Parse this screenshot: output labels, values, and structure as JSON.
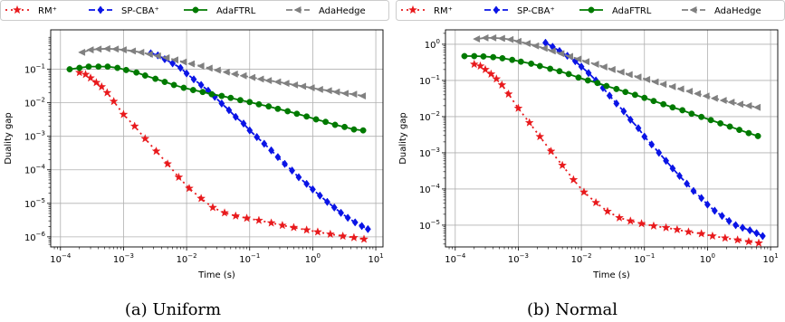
{
  "chart_data": [
    {
      "type": "line",
      "caption": "(a) Uniform",
      "xlabel": "Time (s)",
      "ylabel": "Duality gap",
      "x_scale": "log",
      "y_scale": "log",
      "xlim": [
        7e-05,
        13
      ],
      "ylim": [
        5e-07,
        1.5
      ],
      "x_ticks": [
        {
          "value": 0.0001,
          "base": "10",
          "exp": "−4"
        },
        {
          "value": 0.001,
          "base": "10",
          "exp": "−3"
        },
        {
          "value": 0.01,
          "base": "10",
          "exp": "−2"
        },
        {
          "value": 0.1,
          "base": "10",
          "exp": "−1"
        },
        {
          "value": 1,
          "base": "10",
          "exp": "0"
        },
        {
          "value": 10,
          "base": "10",
          "exp": "1"
        }
      ],
      "y_ticks": [
        {
          "value": 1e-06,
          "base": "10",
          "exp": "−6"
        },
        {
          "value": 1e-05,
          "base": "10",
          "exp": "−5"
        },
        {
          "value": 0.0001,
          "base": "10",
          "exp": "−4"
        },
        {
          "value": 0.001,
          "base": "10",
          "exp": "−3"
        },
        {
          "value": 0.01,
          "base": "10",
          "exp": "−2"
        },
        {
          "value": 0.1,
          "base": "10",
          "exp": "−1"
        }
      ],
      "grid": true,
      "legend_position": "top",
      "series": [
        {
          "name": "RM⁺",
          "color": "#e8191c",
          "marker": "star",
          "dash": "2,4",
          "x": [
            0.0002,
            0.00025,
            0.0003,
            0.00037,
            0.00045,
            0.00055,
            0.0007,
            0.001,
            0.0015,
            0.0022,
            0.0033,
            0.005,
            0.0075,
            0.011,
            0.017,
            0.026,
            0.04,
            0.06,
            0.09,
            0.14,
            0.22,
            0.33,
            0.5,
            0.8,
            1.2,
            1.9,
            3,
            4.5,
            6.5
          ],
          "y": [
            0.08,
            0.07,
            0.055,
            0.04,
            0.03,
            0.02,
            0.011,
            0.0045,
            0.002,
            0.00085,
            0.00036,
            0.00015,
            6e-05,
            2.8e-05,
            1.4e-05,
            7.5e-06,
            5.2e-06,
            4.2e-06,
            3.6e-06,
            3.1e-06,
            2.6e-06,
            2.2e-06,
            1.9e-06,
            1.6e-06,
            1.4e-06,
            1.2e-06,
            1.05e-06,
            9.5e-07,
            8.5e-07
          ]
        },
        {
          "name": "SP-CBA⁺",
          "color": "#0a14e6",
          "marker": "diamond",
          "dash": "7,3",
          "x": [
            0.0027,
            0.0035,
            0.0045,
            0.006,
            0.008,
            0.01,
            0.013,
            0.017,
            0.022,
            0.028,
            0.036,
            0.047,
            0.06,
            0.08,
            0.1,
            0.13,
            0.17,
            0.22,
            0.28,
            0.36,
            0.47,
            0.6,
            0.8,
            1.0,
            1.3,
            1.7,
            2.2,
            2.8,
            3.6,
            4.7,
            6,
            7.5
          ],
          "y": [
            0.3,
            0.26,
            0.2,
            0.15,
            0.11,
            0.075,
            0.05,
            0.034,
            0.023,
            0.015,
            0.0095,
            0.006,
            0.0038,
            0.0024,
            0.0015,
            0.00095,
            0.0006,
            0.00038,
            0.00024,
            0.00015,
            9.5e-05,
            6e-05,
            3.8e-05,
            2.6e-05,
            1.7e-05,
            1.1e-05,
            7.5e-06,
            5.2e-06,
            3.7e-06,
            2.7e-06,
            2.1e-06,
            1.7e-06
          ]
        },
        {
          "name": "AdaFTRL",
          "color": "#007a00",
          "marker": "circle",
          "dash": "",
          "x": [
            0.00014,
            0.0002,
            0.00028,
            0.0004,
            0.00056,
            0.0008,
            0.0011,
            0.0016,
            0.0022,
            0.0032,
            0.0045,
            0.0063,
            0.009,
            0.0127,
            0.018,
            0.025,
            0.036,
            0.05,
            0.071,
            0.1,
            0.14,
            0.2,
            0.28,
            0.4,
            0.56,
            0.8,
            1.13,
            1.6,
            2.26,
            3.2,
            4.5,
            6.3
          ],
          "y": [
            0.1,
            0.11,
            0.12,
            0.12,
            0.12,
            0.11,
            0.095,
            0.08,
            0.065,
            0.052,
            0.042,
            0.034,
            0.028,
            0.024,
            0.021,
            0.018,
            0.016,
            0.014,
            0.012,
            0.0105,
            0.009,
            0.0078,
            0.0066,
            0.0056,
            0.0047,
            0.0039,
            0.0032,
            0.0027,
            0.0022,
            0.0019,
            0.0016,
            0.0015
          ]
        },
        {
          "name": "AdaHedge",
          "color": "#808080",
          "marker": "triangle-left",
          "dash": "7,3",
          "x": [
            0.00022,
            0.0003,
            0.0004,
            0.00055,
            0.00075,
            0.001,
            0.0014,
            0.0019,
            0.0026,
            0.0035,
            0.0048,
            0.0066,
            0.009,
            0.012,
            0.017,
            0.023,
            0.031,
            0.043,
            0.058,
            0.08,
            0.11,
            0.15,
            0.2,
            0.28,
            0.38,
            0.52,
            0.7,
            0.96,
            1.3,
            1.8,
            2.4,
            3.3,
            4.5,
            6.2
          ],
          "y": [
            0.32,
            0.38,
            0.4,
            0.41,
            0.4,
            0.38,
            0.35,
            0.32,
            0.28,
            0.25,
            0.22,
            0.19,
            0.165,
            0.145,
            0.125,
            0.108,
            0.094,
            0.082,
            0.072,
            0.064,
            0.057,
            0.051,
            0.046,
            0.042,
            0.038,
            0.034,
            0.031,
            0.028,
            0.025,
            0.023,
            0.021,
            0.019,
            0.018,
            0.016
          ]
        }
      ]
    },
    {
      "type": "line",
      "caption": "(b) Normal",
      "xlabel": "Time (s)",
      "ylabel": "Duality gap",
      "x_scale": "log",
      "y_scale": "log",
      "xlim": [
        7e-05,
        13
      ],
      "ylim": [
        2.5e-06,
        2.5
      ],
      "x_ticks": [
        {
          "value": 0.0001,
          "base": "10",
          "exp": "−4"
        },
        {
          "value": 0.001,
          "base": "10",
          "exp": "−3"
        },
        {
          "value": 0.01,
          "base": "10",
          "exp": "−2"
        },
        {
          "value": 0.1,
          "base": "10",
          "exp": "−1"
        },
        {
          "value": 1,
          "base": "10",
          "exp": "0"
        },
        {
          "value": 10,
          "base": "10",
          "exp": "1"
        }
      ],
      "y_ticks": [
        {
          "value": 1e-05,
          "base": "10",
          "exp": "−5"
        },
        {
          "value": 0.0001,
          "base": "10",
          "exp": "−4"
        },
        {
          "value": 0.001,
          "base": "10",
          "exp": "−3"
        },
        {
          "value": 0.01,
          "base": "10",
          "exp": "−2"
        },
        {
          "value": 0.1,
          "base": "10",
          "exp": "−1"
        },
        {
          "value": 1,
          "base": "10",
          "exp": "0"
        }
      ],
      "grid": true,
      "legend_position": "top",
      "series": [
        {
          "name": "RM⁺",
          "color": "#e8191c",
          "marker": "star",
          "dash": "2,4",
          "x": [
            0.0002,
            0.00025,
            0.0003,
            0.00037,
            0.00045,
            0.00055,
            0.0007,
            0.001,
            0.0015,
            0.0022,
            0.0033,
            0.005,
            0.0075,
            0.011,
            0.017,
            0.026,
            0.04,
            0.06,
            0.09,
            0.14,
            0.22,
            0.33,
            0.5,
            0.8,
            1.2,
            1.9,
            3,
            4.5,
            6.5
          ],
          "y": [
            0.28,
            0.25,
            0.2,
            0.15,
            0.11,
            0.075,
            0.042,
            0.017,
            0.0068,
            0.0028,
            0.0011,
            0.00045,
            0.00018,
            8.2e-05,
            4.2e-05,
            2.4e-05,
            1.6e-05,
            1.3e-05,
            1.1e-05,
            9.5e-06,
            8.5e-06,
            7.5e-06,
            6.5e-06,
            5.8e-06,
            5e-06,
            4.4e-06,
            3.9e-06,
            3.5e-06,
            3.2e-06
          ]
        },
        {
          "name": "SP-CBA⁺",
          "color": "#0a14e6",
          "marker": "diamond",
          "dash": "7,3",
          "x": [
            0.0027,
            0.0035,
            0.0045,
            0.006,
            0.008,
            0.01,
            0.013,
            0.017,
            0.022,
            0.028,
            0.036,
            0.047,
            0.06,
            0.08,
            0.1,
            0.13,
            0.17,
            0.22,
            0.28,
            0.36,
            0.47,
            0.6,
            0.8,
            1.0,
            1.3,
            1.7,
            2.2,
            2.8,
            3.6,
            4.7,
            6,
            7.5
          ],
          "y": [
            1.1,
            0.85,
            0.65,
            0.48,
            0.34,
            0.24,
            0.16,
            0.1,
            0.062,
            0.038,
            0.023,
            0.014,
            0.0082,
            0.0048,
            0.0028,
            0.0017,
            0.001,
            0.0006,
            0.00037,
            0.00023,
            0.00014,
            8.8e-05,
            5.6e-05,
            3.7e-05,
            2.5e-05,
            1.8e-05,
            1.3e-05,
            1e-05,
            8.5e-06,
            7.2e-06,
            6e-06,
            5e-06
          ]
        },
        {
          "name": "AdaFTRL",
          "color": "#007a00",
          "marker": "circle",
          "dash": "",
          "x": [
            0.00014,
            0.0002,
            0.00028,
            0.0004,
            0.00056,
            0.0008,
            0.0011,
            0.0016,
            0.0022,
            0.0032,
            0.0045,
            0.0063,
            0.009,
            0.0127,
            0.018,
            0.025,
            0.036,
            0.05,
            0.071,
            0.1,
            0.14,
            0.2,
            0.28,
            0.4,
            0.56,
            0.8,
            1.13,
            1.6,
            2.26,
            3.2,
            4.5,
            6.3
          ],
          "y": [
            0.47,
            0.47,
            0.46,
            0.44,
            0.41,
            0.37,
            0.33,
            0.29,
            0.25,
            0.21,
            0.18,
            0.15,
            0.12,
            0.1,
            0.085,
            0.07,
            0.058,
            0.048,
            0.04,
            0.033,
            0.027,
            0.022,
            0.018,
            0.015,
            0.012,
            0.0098,
            0.008,
            0.0065,
            0.0053,
            0.0043,
            0.0035,
            0.0029
          ]
        },
        {
          "name": "AdaHedge",
          "color": "#808080",
          "marker": "triangle-left",
          "dash": "7,3",
          "x": [
            0.00022,
            0.0003,
            0.0004,
            0.00055,
            0.00075,
            0.001,
            0.0014,
            0.0019,
            0.0026,
            0.0035,
            0.0048,
            0.0066,
            0.009,
            0.012,
            0.017,
            0.023,
            0.031,
            0.043,
            0.058,
            0.08,
            0.11,
            0.15,
            0.2,
            0.28,
            0.38,
            0.52,
            0.7,
            0.96,
            1.3,
            1.8,
            2.4,
            3.3,
            4.5,
            6.2
          ],
          "y": [
            1.4,
            1.5,
            1.5,
            1.45,
            1.35,
            1.2,
            1.05,
            0.9,
            0.77,
            0.65,
            0.55,
            0.46,
            0.39,
            0.33,
            0.28,
            0.235,
            0.2,
            0.17,
            0.145,
            0.124,
            0.106,
            0.091,
            0.078,
            0.067,
            0.058,
            0.05,
            0.043,
            0.037,
            0.032,
            0.028,
            0.025,
            0.022,
            0.02,
            0.018
          ]
        }
      ]
    }
  ]
}
